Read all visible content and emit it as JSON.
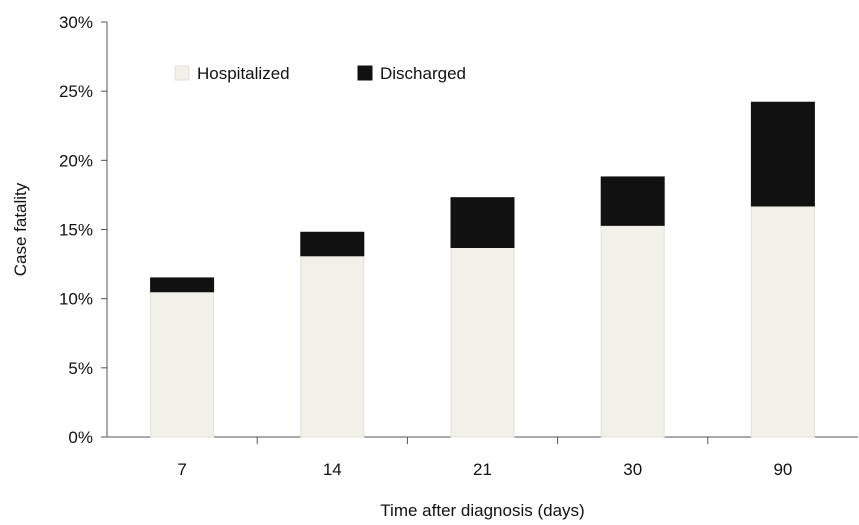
{
  "chart_data": {
    "type": "bar",
    "stacked": true,
    "categories": [
      "7",
      "14",
      "21",
      "30",
      "90"
    ],
    "series": [
      {
        "name": "Hospitalized",
        "values": [
          10.5,
          13.1,
          13.7,
          15.3,
          16.7
        ],
        "color": "#f1f0e9"
      },
      {
        "name": "Discharged",
        "values": [
          1.0,
          1.7,
          3.6,
          3.5,
          7.5
        ],
        "color": "#111111"
      }
    ],
    "xlabel": "Time after diagnosis (days)",
    "ylabel": "Case fatality",
    "ylim": [
      0,
      30
    ],
    "yticks": [
      "0%",
      "5%",
      "10%",
      "15%",
      "20%",
      "25%",
      "30%"
    ],
    "grid": false,
    "legend": "top-left"
  }
}
